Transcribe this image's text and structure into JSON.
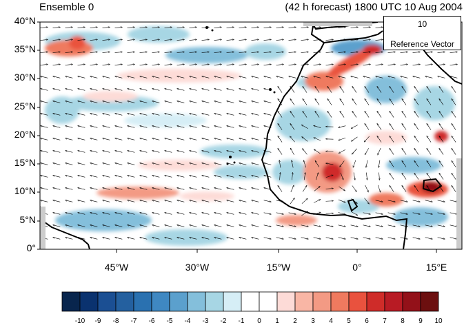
{
  "title_left": "Ensemble 0",
  "title_right": "(42 h forecast) 1800 UTC 10 Aug 2004",
  "y_ticks": [
    "40°N",
    "35°N",
    "30°N",
    "25°N",
    "20°N",
    "15°N",
    "10°N",
    "5°N",
    "0°"
  ],
  "x_ticks": [
    "45°W",
    "30°W",
    "15°W",
    "0°",
    "15°E"
  ],
  "reference_vector": {
    "value": "10",
    "label": "Reference Vector"
  },
  "colorbar": {
    "labels": [
      "-10",
      "-9",
      "-8",
      "-7",
      "-6",
      "-5",
      "-4",
      "-3",
      "-2",
      "-1",
      "0",
      "1",
      "2",
      "3",
      "4",
      "5",
      "6",
      "7",
      "8",
      "9",
      "10"
    ],
    "colors": [
      "#08254d",
      "#0a326f",
      "#1b4f93",
      "#24609f",
      "#2a71b0",
      "#3f88c2",
      "#5ba0cd",
      "#84bfdb",
      "#a7d6e4",
      "#d6eef6",
      "#ffffff",
      "#ffffff",
      "#fddbd7",
      "#f9b6a5",
      "#f39a84",
      "#ef7a5f",
      "#e9523e",
      "#cf2c29",
      "#b81b24",
      "#931119",
      "#6c0f0f"
    ]
  },
  "chart_data": {
    "type": "map",
    "variable": "shaded anomaly field with wind vectors",
    "lon_range": [
      -58,
      20
    ],
    "lat_range": [
      0,
      40
    ],
    "shading_scale": [
      -10,
      10
    ]
  }
}
